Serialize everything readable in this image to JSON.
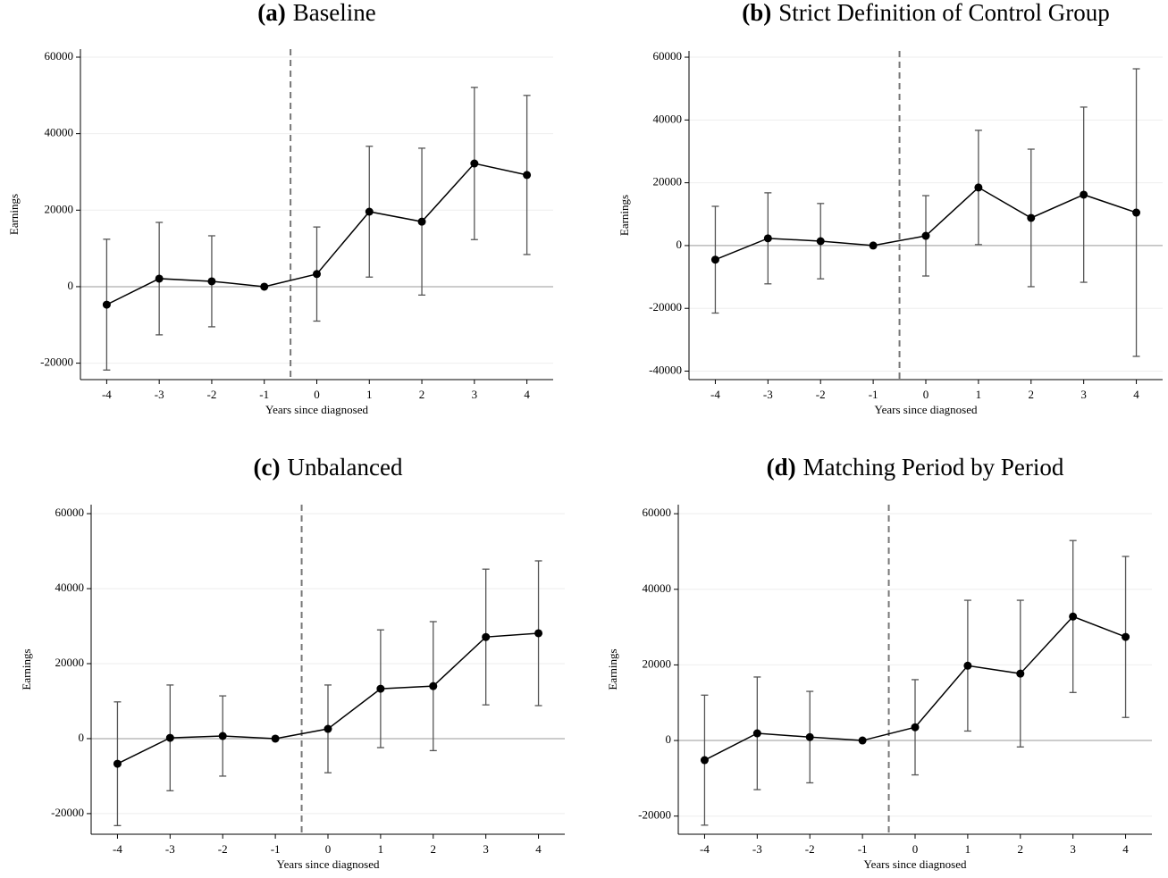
{
  "chart_data": [
    {
      "type": "line",
      "label": "(a)",
      "title": "Baseline",
      "xlabel": "Years since diagnosed",
      "ylabel": "Earnings",
      "x": [
        -4,
        -3,
        -2,
        -1,
        0,
        1,
        2,
        3,
        4
      ],
      "values": [
        -4700,
        2100,
        1400,
        0,
        3300,
        19600,
        17000,
        32200,
        29200
      ],
      "errors": [
        17100,
        14700,
        11900,
        null,
        12300,
        17100,
        19200,
        19900,
        20800
      ],
      "xlim": [
        -4.5,
        4.5
      ],
      "xticks": [
        -4,
        -3,
        -2,
        -1,
        0,
        1,
        2,
        3,
        4
      ],
      "ylim": [
        -24300,
        62100
      ],
      "yticks": [
        -20000,
        0,
        20000,
        40000,
        60000
      ],
      "grid": true,
      "zero_line": 0,
      "vline": -0.5,
      "color": "#000000",
      "error_color": "#555555",
      "vline_color": "#777777"
    },
    {
      "type": "line",
      "label": "(b)",
      "title": "Strict Definition of Control Group",
      "xlabel": "Years since diagnosed",
      "ylabel": "Earnings",
      "x": [
        -4,
        -3,
        -2,
        -1,
        0,
        1,
        2,
        3,
        4
      ],
      "values": [
        -4500,
        2300,
        1400,
        0,
        3100,
        18500,
        8800,
        16200,
        10500
      ],
      "errors": [
        17000,
        14500,
        12000,
        null,
        12800,
        18200,
        21900,
        27900,
        45800
      ],
      "xlim": [
        -4.5,
        4.5
      ],
      "xticks": [
        -4,
        -3,
        -2,
        -1,
        0,
        1,
        2,
        3,
        4
      ],
      "ylim": [
        -42700,
        62000
      ],
      "yticks": [
        -40000,
        -20000,
        0,
        20000,
        40000,
        60000
      ],
      "grid": true,
      "zero_line": 0,
      "vline": -0.5,
      "color": "#000000",
      "error_color": "#555555",
      "vline_color": "#777777"
    },
    {
      "type": "line",
      "label": "(c)",
      "title": "Unbalanced",
      "xlabel": "Years since diagnosed",
      "ylabel": "Earnings",
      "x": [
        -4,
        -3,
        -2,
        -1,
        0,
        1,
        2,
        3,
        4
      ],
      "values": [
        -6700,
        200,
        700,
        0,
        2600,
        13300,
        14000,
        27100,
        28100
      ],
      "errors": [
        16500,
        14100,
        10700,
        null,
        11700,
        15700,
        17200,
        18100,
        19300
      ],
      "xlim": [
        -4.5,
        4.5
      ],
      "xticks": [
        -4,
        -3,
        -2,
        -1,
        0,
        1,
        2,
        3,
        4
      ],
      "ylim": [
        -25500,
        62400
      ],
      "yticks": [
        -20000,
        0,
        20000,
        40000,
        60000
      ],
      "grid": true,
      "zero_line": 0,
      "vline": -0.5,
      "color": "#000000",
      "error_color": "#555555",
      "vline_color": "#777777"
    },
    {
      "type": "line",
      "label": "(d)",
      "title": "Matching Period by Period",
      "xlabel": "Years since diagnosed",
      "ylabel": "Earnings",
      "x": [
        -4,
        -3,
        -2,
        -1,
        0,
        1,
        2,
        3,
        4
      ],
      "values": [
        -5200,
        1900,
        900,
        0,
        3500,
        19800,
        17700,
        32800,
        27400
      ],
      "errors": [
        17200,
        14900,
        12100,
        null,
        12600,
        17300,
        19400,
        20100,
        21300
      ],
      "xlim": [
        -4.5,
        4.5
      ],
      "xticks": [
        -4,
        -3,
        -2,
        -1,
        0,
        1,
        2,
        3,
        4
      ],
      "ylim": [
        -24800,
        62400
      ],
      "yticks": [
        -20000,
        0,
        20000,
        40000,
        60000
      ],
      "grid": true,
      "zero_line": 0,
      "vline": -0.5,
      "color": "#000000",
      "error_color": "#555555",
      "vline_color": "#777777"
    }
  ]
}
